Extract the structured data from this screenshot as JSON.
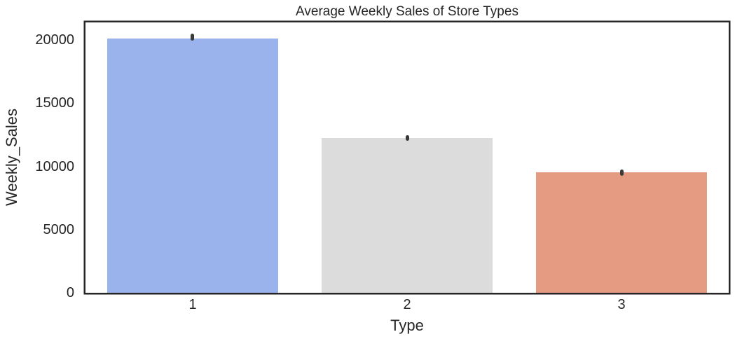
{
  "chart_data": {
    "type": "bar",
    "title": "Average Weekly Sales of Store Types",
    "xlabel": "Type",
    "ylabel": "Weekly_Sales",
    "categories": [
      "1",
      "2",
      "3"
    ],
    "values": [
      20100,
      12240,
      9520
    ],
    "error_bars": [
      {
        "low": 19950,
        "high": 20500
      },
      {
        "low": 12050,
        "high": 12500
      },
      {
        "low": 9250,
        "high": 9750
      }
    ],
    "bar_colors": [
      "#9ab3ec",
      "#dcdcdc",
      "#e59b82"
    ],
    "ylim": [
      0,
      21400
    ],
    "yticks": [
      0,
      5000,
      10000,
      15000,
      20000
    ],
    "grid": false,
    "legend": null,
    "bar_width_fraction": 0.8
  },
  "style": {
    "background": "#ffffff",
    "text_color": "#262626",
    "spine_color": "#262626",
    "errorbar_color": "#3a3a3a"
  }
}
